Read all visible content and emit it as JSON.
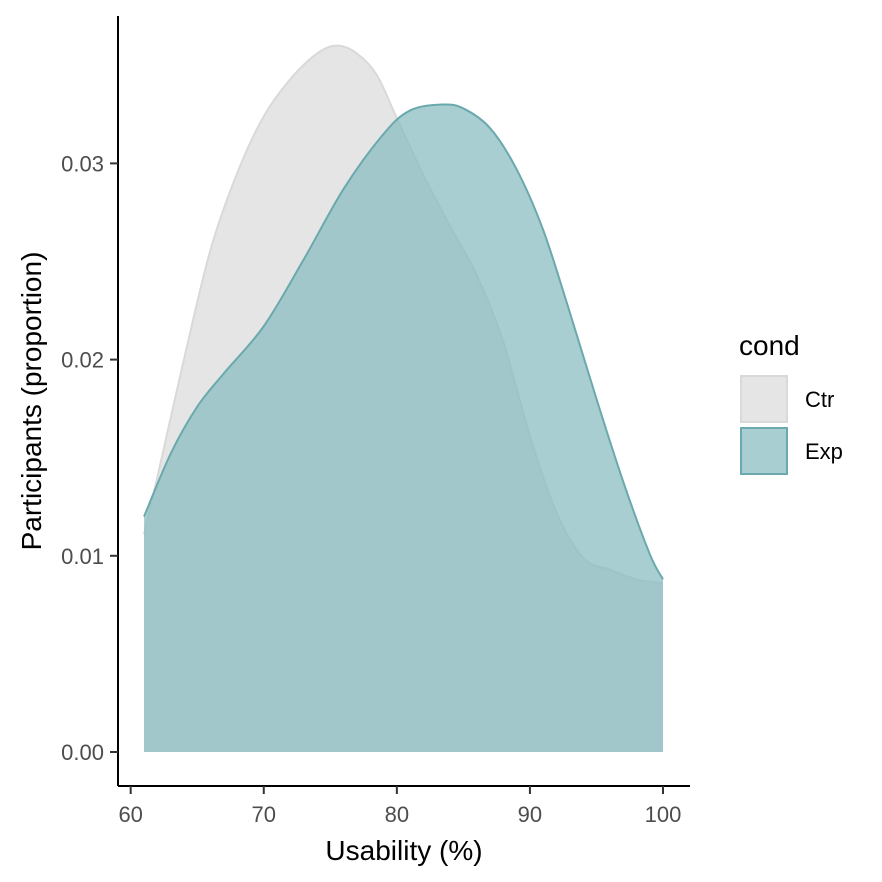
{
  "chart_data": {
    "type": "area",
    "title": "",
    "xlabel": "Usability (%)",
    "ylabel": "Participants (proportion)",
    "xlim": [
      61,
      100
    ],
    "ylim": [
      0,
      0.035
    ],
    "x_ticks": [
      "60",
      "70",
      "80",
      "90",
      "100"
    ],
    "x_tick_values": [
      60,
      70,
      80,
      90,
      100
    ],
    "y_ticks": [
      "0.00",
      "0.01",
      "0.02",
      "0.03"
    ],
    "y_tick_values": [
      0.0,
      0.01,
      0.02,
      0.03
    ],
    "grid": false,
    "legend": {
      "title": "cond",
      "position": "right",
      "entries": [
        "Ctr",
        "Exp"
      ]
    },
    "series": [
      {
        "name": "Ctr",
        "fill": "#e5e5e5",
        "stroke": "#d9d9d9",
        "points": [
          [
            61,
            0.0111
          ],
          [
            62,
            0.014
          ],
          [
            64,
            0.02
          ],
          [
            66,
            0.0256
          ],
          [
            68,
            0.0295
          ],
          [
            70,
            0.0324
          ],
          [
            72,
            0.0343
          ],
          [
            74,
            0.0356
          ],
          [
            75.5,
            0.036
          ],
          [
            77,
            0.0356
          ],
          [
            78.5,
            0.0345
          ],
          [
            80,
            0.0323
          ],
          [
            82,
            0.0294
          ],
          [
            84,
            0.0268
          ],
          [
            86,
            0.0243
          ],
          [
            88,
            0.0209
          ],
          [
            90,
            0.0161
          ],
          [
            92,
            0.0122
          ],
          [
            94,
            0.0099
          ],
          [
            96,
            0.0093
          ],
          [
            98,
            0.0088
          ],
          [
            100,
            0.0086
          ]
        ]
      },
      {
        "name": "Exp",
        "fill": "#86bbbf",
        "stroke": "#6aa9ad",
        "points": [
          [
            61,
            0.012
          ],
          [
            63,
            0.0152
          ],
          [
            65,
            0.0176
          ],
          [
            67,
            0.0193
          ],
          [
            70,
            0.0217
          ],
          [
            73,
            0.0251
          ],
          [
            76,
            0.0287
          ],
          [
            79,
            0.0315
          ],
          [
            81,
            0.0327
          ],
          [
            83.4,
            0.033
          ],
          [
            85,
            0.0328
          ],
          [
            87,
            0.0318
          ],
          [
            89,
            0.0297
          ],
          [
            91,
            0.0266
          ],
          [
            93,
            0.0224
          ],
          [
            95,
            0.018
          ],
          [
            97,
            0.0138
          ],
          [
            99,
            0.0101
          ],
          [
            100,
            0.0088
          ]
        ]
      }
    ]
  }
}
